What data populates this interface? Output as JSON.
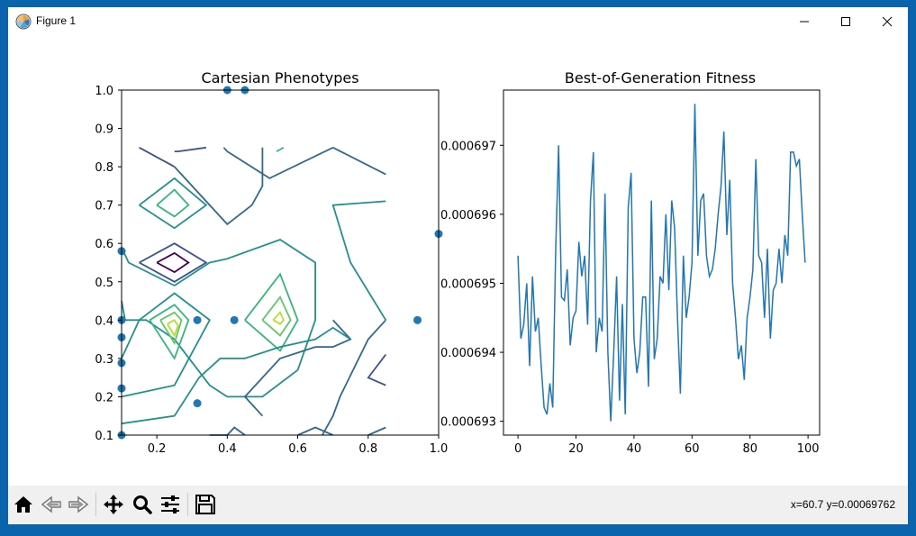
{
  "window": {
    "title": "Figure 1",
    "minimize_icon": "minimize-icon",
    "maximize_icon": "maximize-icon",
    "close_icon": "close-icon"
  },
  "toolbar": {
    "buttons": [
      {
        "name": "home-button",
        "icon": "home-icon"
      },
      {
        "name": "back-button",
        "icon": "back-arrow-icon"
      },
      {
        "name": "forward-button",
        "icon": "forward-arrow-icon"
      },
      {
        "name": "pan-button",
        "icon": "move-icon"
      },
      {
        "name": "zoom-button",
        "icon": "magnifier-icon"
      },
      {
        "name": "configure-subplots-button",
        "icon": "sliders-icon"
      },
      {
        "name": "save-button",
        "icon": "floppy-disk-icon"
      }
    ],
    "coordinates": "x=60.7 y=0.00069762"
  },
  "chart_data": [
    {
      "type": "contour",
      "title": "Cartesian Phenotypes",
      "xlabel": "",
      "ylabel": "",
      "xlim": [
        0.1,
        1.0
      ],
      "ylim": [
        0.1,
        1.0
      ],
      "xticks": [
        "0.2",
        "0.4",
        "0.6",
        "0.8",
        "1.0"
      ],
      "yticks": [
        "0.1",
        "0.2",
        "0.3",
        "0.4",
        "0.5",
        "0.6",
        "0.7",
        "0.8",
        "0.9",
        "1.0"
      ],
      "scatter_points": [
        {
          "x": 0.4,
          "y": 1.0
        },
        {
          "x": 0.45,
          "y": 1.0
        },
        {
          "x": 0.1,
          "y": 0.58
        },
        {
          "x": 1.0,
          "y": 0.625
        },
        {
          "x": 0.1,
          "y": 0.4
        },
        {
          "x": 0.1,
          "y": 0.355
        },
        {
          "x": 0.315,
          "y": 0.4
        },
        {
          "x": 0.42,
          "y": 0.4
        },
        {
          "x": 0.94,
          "y": 0.4
        },
        {
          "x": 0.1,
          "y": 0.288
        },
        {
          "x": 0.1,
          "y": 0.222
        },
        {
          "x": 0.315,
          "y": 0.183
        },
        {
          "x": 0.1,
          "y": 0.1
        }
      ],
      "contours": [
        {
          "color": "#3b528b",
          "points": [
            [
              0.15,
              0.85
            ],
            [
              0.25,
              0.8
            ]
          ]
        },
        {
          "color": "#3b528b",
          "points": [
            [
              0.25,
              0.84
            ],
            [
              0.26,
              0.84
            ],
            [
              0.34,
              0.85
            ]
          ]
        },
        {
          "color": "#31688e",
          "points": [
            [
              0.39,
              0.85
            ],
            [
              0.4,
              0.84
            ],
            [
              0.52,
              0.77
            ],
            [
              0.7,
              0.85
            ]
          ]
        },
        {
          "color": "#31688e",
          "points": [
            [
              0.7,
              0.85
            ],
            [
              0.85,
              0.78
            ]
          ]
        },
        {
          "color": "#31688e",
          "points": [
            [
              0.25,
              0.8
            ],
            [
              0.4,
              0.65
            ],
            [
              0.47,
              0.7
            ],
            [
              0.5,
              0.75
            ],
            [
              0.5,
              0.85
            ]
          ]
        },
        {
          "color": "#21918c",
          "points": [
            [
              0.15,
              0.7
            ],
            [
              0.25,
              0.77
            ],
            [
              0.34,
              0.7
            ],
            [
              0.25,
              0.64
            ],
            [
              0.15,
              0.7
            ]
          ]
        },
        {
          "color": "#35b779",
          "points": [
            [
              0.2,
              0.7
            ],
            [
              0.25,
              0.74
            ],
            [
              0.29,
              0.7
            ],
            [
              0.25,
              0.67
            ],
            [
              0.2,
              0.7
            ]
          ]
        },
        {
          "color": "#35b779",
          "points": [
            [
              0.54,
              0.84
            ],
            [
              0.55,
              0.845
            ],
            [
              0.56,
              0.85
            ]
          ]
        },
        {
          "color": "#3b528b",
          "points": [
            [
              0.15,
              0.55
            ],
            [
              0.25,
              0.6
            ],
            [
              0.34,
              0.55
            ],
            [
              0.25,
              0.5
            ],
            [
              0.15,
              0.55
            ]
          ]
        },
        {
          "color": "#440154",
          "points": [
            [
              0.2,
              0.55
            ],
            [
              0.25,
              0.575
            ],
            [
              0.29,
              0.55
            ],
            [
              0.25,
              0.525
            ],
            [
              0.2,
              0.55
            ]
          ]
        },
        {
          "color": "#21918c",
          "points": [
            [
              0.1,
              0.59
            ],
            [
              0.12,
              0.55
            ],
            [
              0.25,
              0.49
            ],
            [
              0.35,
              0.55
            ],
            [
              0.4,
              0.56
            ],
            [
              0.55,
              0.61
            ],
            [
              0.65,
              0.55
            ],
            [
              0.65,
              0.4
            ],
            [
              0.6,
              0.27
            ],
            [
              0.5,
              0.2
            ],
            [
              0.4,
              0.2
            ],
            [
              0.35,
              0.23
            ],
            [
              0.25,
              0.35
            ],
            [
              0.17,
              0.4
            ],
            [
              0.11,
              0.4
            ],
            [
              0.1,
              0.45
            ]
          ]
        },
        {
          "color": "#21918c",
          "points": [
            [
              0.85,
              0.71
            ],
            [
              0.7,
              0.7
            ],
            [
              0.75,
              0.55
            ],
            [
              0.85,
              0.4
            ]
          ]
        },
        {
          "color": "#21918c",
          "points": [
            [
              0.1,
              0.2
            ],
            [
              0.25,
              0.23
            ],
            [
              0.35,
              0.4
            ],
            [
              0.25,
              0.47
            ],
            [
              0.15,
              0.4
            ],
            [
              0.1,
              0.3
            ]
          ]
        },
        {
          "color": "#35b779",
          "points": [
            [
              0.45,
              0.4
            ],
            [
              0.55,
              0.52
            ],
            [
              0.6,
              0.4
            ],
            [
              0.55,
              0.32
            ],
            [
              0.45,
              0.4
            ]
          ]
        },
        {
          "color": "#5ec962",
          "points": [
            [
              0.5,
              0.4
            ],
            [
              0.55,
              0.46
            ],
            [
              0.58,
              0.4
            ],
            [
              0.55,
              0.36
            ],
            [
              0.5,
              0.4
            ]
          ]
        },
        {
          "color": "#b5de2b",
          "points": [
            [
              0.53,
              0.4
            ],
            [
              0.55,
              0.42
            ],
            [
              0.56,
              0.4
            ],
            [
              0.55,
              0.39
            ],
            [
              0.53,
              0.4
            ]
          ]
        },
        {
          "color": "#35b779",
          "points": [
            [
              0.18,
              0.4
            ],
            [
              0.25,
              0.44
            ],
            [
              0.29,
              0.4
            ],
            [
              0.25,
              0.3
            ],
            [
              0.18,
              0.4
            ]
          ]
        },
        {
          "color": "#5ec962",
          "points": [
            [
              0.21,
              0.4
            ],
            [
              0.25,
              0.42
            ],
            [
              0.27,
              0.4
            ],
            [
              0.25,
              0.34
            ],
            [
              0.21,
              0.4
            ]
          ]
        },
        {
          "color": "#b5de2b",
          "points": [
            [
              0.23,
              0.39
            ],
            [
              0.25,
              0.4
            ],
            [
              0.26,
              0.385
            ],
            [
              0.25,
              0.36
            ],
            [
              0.23,
              0.39
            ]
          ]
        },
        {
          "color": "#31688e",
          "points": [
            [
              0.7,
              0.4
            ],
            [
              0.75,
              0.35
            ],
            [
              0.7,
              0.33
            ],
            [
              0.65,
              0.33
            ],
            [
              0.55,
              0.3
            ],
            [
              0.45,
              0.2
            ],
            [
              0.5,
              0.15
            ]
          ]
        },
        {
          "color": "#31688e",
          "points": [
            [
              0.85,
              0.4
            ],
            [
              0.8,
              0.35
            ],
            [
              0.72,
              0.2
            ],
            [
              0.7,
              0.15
            ],
            [
              0.67,
              0.1
            ]
          ]
        },
        {
          "color": "#21918c",
          "points": [
            [
              0.1,
              0.13
            ],
            [
              0.25,
              0.15
            ],
            [
              0.32,
              0.25
            ],
            [
              0.38,
              0.3
            ],
            [
              0.45,
              0.3
            ],
            [
              0.55,
              0.33
            ],
            [
              0.65,
              0.35
            ],
            [
              0.7,
              0.38
            ],
            [
              0.75,
              0.35
            ]
          ]
        },
        {
          "color": "#31688e",
          "points": [
            [
              0.35,
              0.1
            ],
            [
              0.4,
              0.1
            ],
            [
              0.42,
              0.12
            ],
            [
              0.45,
              0.1
            ]
          ]
        },
        {
          "color": "#3b528b",
          "points": [
            [
              0.85,
              0.31
            ],
            [
              0.8,
              0.25
            ],
            [
              0.85,
              0.23
            ]
          ]
        },
        {
          "color": "#31688e",
          "points": [
            [
              0.6,
              0.1
            ],
            [
              0.65,
              0.12
            ],
            [
              0.7,
              0.1
            ]
          ]
        },
        {
          "color": "#31688e",
          "points": [
            [
              0.85,
              0.12
            ],
            [
              0.8,
              0.1
            ]
          ]
        }
      ]
    },
    {
      "type": "line",
      "title": "Best-of-Generation Fitness",
      "xlabel": "",
      "ylabel": "",
      "xlim": [
        -5,
        104
      ],
      "ylim": [
        0.0006928,
        0.0006978
      ],
      "xticks": [
        "0",
        "20",
        "40",
        "60",
        "80",
        "100"
      ],
      "yticks": [
        "0.000693",
        "0.000694",
        "0.000695",
        "0.000696",
        "0.000697"
      ],
      "series": [
        {
          "color": "#1f77b4",
          "x": [
            0,
            1,
            2,
            3,
            4,
            5,
            6,
            7,
            8,
            9,
            10,
            11,
            12,
            13,
            14,
            15,
            16,
            17,
            18,
            19,
            20,
            21,
            22,
            23,
            24,
            25,
            26,
            27,
            28,
            29,
            30,
            31,
            32,
            33,
            34,
            35,
            36,
            37,
            38,
            39,
            40,
            41,
            42,
            43,
            44,
            45,
            46,
            47,
            48,
            49,
            50,
            51,
            52,
            53,
            54,
            55,
            56,
            57,
            58,
            59,
            60,
            61,
            62,
            63,
            64,
            65,
            66,
            67,
            68,
            69,
            70,
            71,
            72,
            73,
            74,
            75,
            76,
            77,
            78,
            79,
            80,
            81,
            82,
            83,
            84,
            85,
            86,
            87,
            88,
            89,
            90,
            91,
            92,
            93,
            94,
            95,
            96,
            97,
            98,
            99
          ],
          "y": [
            0.0006954,
            0.0006942,
            0.0006944,
            0.000695,
            0.0006938,
            0.0006951,
            0.0006943,
            0.0006945,
            0.0006938,
            0.0006932,
            0.0006931,
            0.00069355,
            0.0006932,
            0.0006955,
            0.000697,
            0.0006948,
            0.00069475,
            0.0006952,
            0.0006941,
            0.0006945,
            0.0006946,
            0.0006956,
            0.0006951,
            0.0006954,
            0.0006944,
            0.0006962,
            0.0006969,
            0.000694,
            0.0006945,
            0.0006943,
            0.0006963,
            0.000694,
            0.000693,
            0.000694,
            0.0006951,
            0.0006933,
            0.0006947,
            0.0006931,
            0.0006961,
            0.0006966,
            0.0006942,
            0.0006937,
            0.000694,
            0.0006948,
            0.0006948,
            0.0006935,
            0.0006962,
            0.0006939,
            0.0006942,
            0.0006951,
            0.000695,
            0.000696,
            0.0006949,
            0.0006962,
            0.0006958,
            0.0006945,
            0.0006934,
            0.0006954,
            0.0006945,
            0.0006948,
            0.0006953,
            0.0006976,
            0.0006954,
            0.0006962,
            0.0006963,
            0.0006954,
            0.0006951,
            0.0006952,
            0.0006955,
            0.000696,
            0.0006964,
            0.0006972,
            0.0006957,
            0.0006965,
            0.000695,
            0.0006945,
            0.0006939,
            0.0006941,
            0.0006936,
            0.0006945,
            0.0006948,
            0.0006952,
            0.0006968,
            0.0006954,
            0.0006953,
            0.0006945,
            0.0006955,
            0.0006942,
            0.0006949,
            0.000695,
            0.0006955,
            0.000695,
            0.0006957,
            0.0006954,
            0.0006969,
            0.0006969,
            0.0006967,
            0.0006968,
            0.000696,
            0.0006953
          ]
        }
      ]
    }
  ]
}
